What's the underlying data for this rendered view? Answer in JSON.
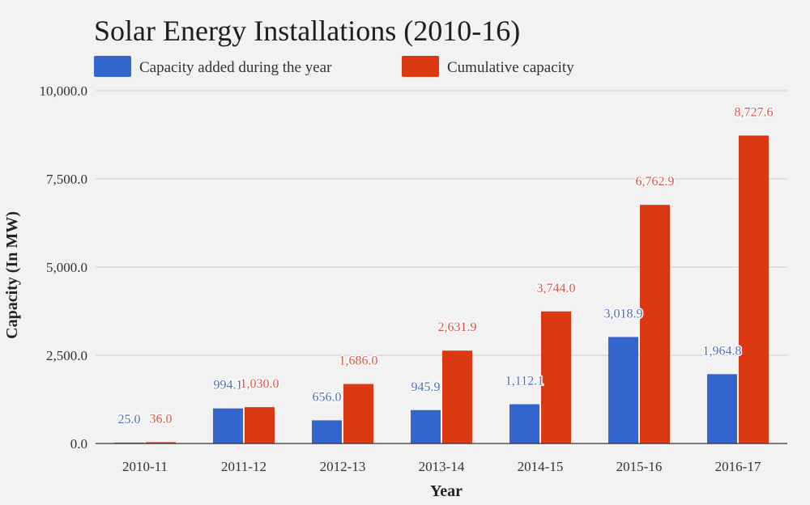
{
  "chart_data": {
    "type": "bar",
    "title": "Solar Energy Installations (2010-16)",
    "xlabel": "Year",
    "ylabel": "Capacity (In MW)",
    "ylim": [
      0,
      10000
    ],
    "yticks": [
      "0.0",
      "2,500.0",
      "5,000.0",
      "7,500.0",
      "10,000.0"
    ],
    "ytick_values": [
      0,
      2500,
      5000,
      7500,
      10000
    ],
    "grid": true,
    "legend_position": "top-left",
    "categories": [
      "2010-11",
      "2011-12",
      "2012-13",
      "2013-14",
      "2014-15",
      "2015-16",
      "2016-17"
    ],
    "series": [
      {
        "name": "Capacity added during the year",
        "color": "#3366cc",
        "label_color": "#4a6fc7",
        "values": [
          25.0,
          994.1,
          656.0,
          945.9,
          1112.1,
          3018.9,
          1964.8
        ],
        "labels": [
          "25.0",
          "994.1",
          "656.0",
          "945.9",
          "1,112.1",
          "3,018.9",
          "1,964.8"
        ]
      },
      {
        "name": "Cumulative capacity",
        "color": "#dc3912",
        "label_color": "#d9534a",
        "values": [
          36.0,
          1030.0,
          1686.0,
          2631.9,
          3744.0,
          6762.9,
          8727.6
        ],
        "labels": [
          "36.0",
          "1,030.0",
          "1,686.0",
          "2,631.9",
          "3,744.0",
          "6,762.9",
          "8,727.6"
        ]
      }
    ]
  }
}
